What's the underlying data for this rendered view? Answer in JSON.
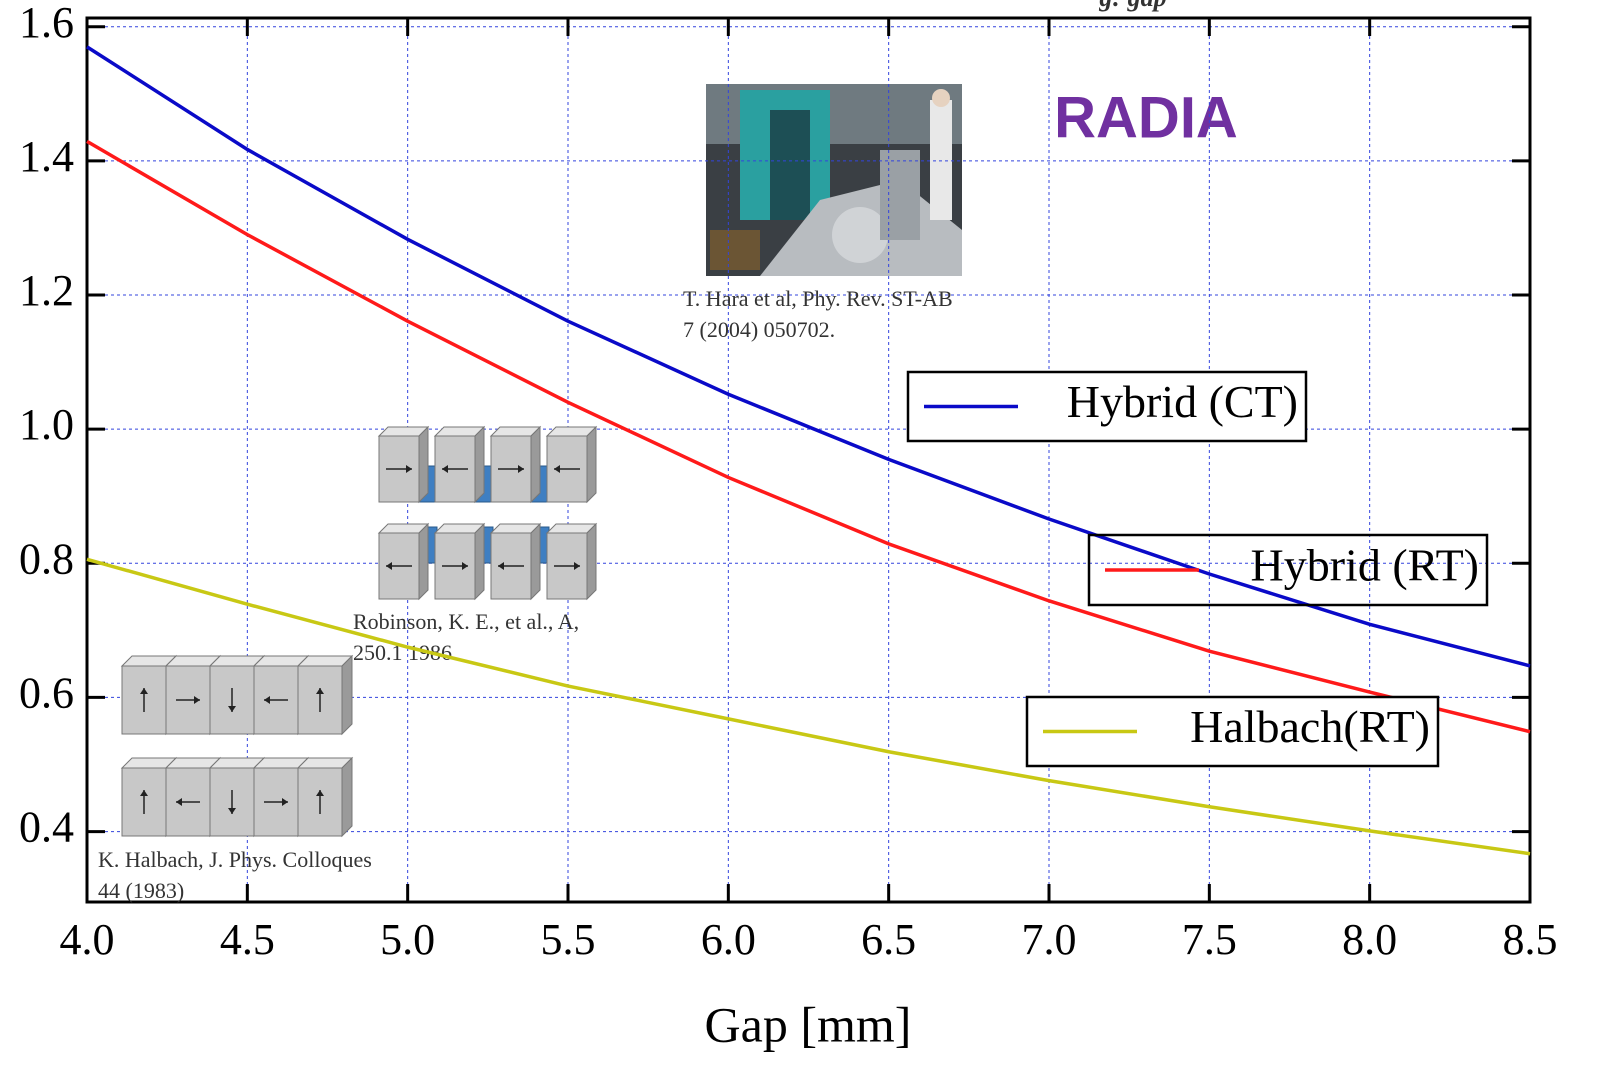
{
  "chart_data": {
    "type": "line",
    "title": "RADIA",
    "subtitle": "g: gap",
    "x_label": "Gap [mm]",
    "x": [
      4.0,
      4.5,
      5.0,
      5.5,
      6.0,
      6.5,
      7.0,
      7.5,
      8.0,
      8.5
    ],
    "series": [
      {
        "name": "Hybrid (CT)",
        "color": "#0a0ac8",
        "values": [
          1.57,
          1.417,
          1.283,
          1.161,
          1.052,
          0.955,
          0.866,
          0.784,
          0.709,
          0.647
        ]
      },
      {
        "name": "Hybrid (RT)",
        "color": "#ff1a1a",
        "values": [
          1.429,
          1.29,
          1.161,
          1.04,
          0.928,
          0.829,
          0.744,
          0.669,
          0.608,
          0.549
        ]
      },
      {
        "name": "Halbach(RT)",
        "color": "#c8c814",
        "values": [
          0.806,
          0.739,
          0.675,
          0.617,
          0.568,
          0.519,
          0.476,
          0.437,
          0.401,
          0.367
        ]
      }
    ],
    "xlim": [
      4.0,
      8.5
    ],
    "ylim": [
      0.295,
      1.613
    ],
    "xticks": [
      {
        "value": 4,
        "label": "4.0"
      },
      4.5,
      {
        "value": 5,
        "label": "5.0"
      },
      5.5,
      {
        "value": 6,
        "label": "6.0"
      },
      6.5,
      {
        "value": 7,
        "label": "7.0"
      },
      7.5,
      {
        "value": 8,
        "label": "8.0"
      },
      8.5
    ],
    "yticks": [
      0.4,
      0.6,
      0.8,
      {
        "value": 1,
        "label": "1.0"
      },
      1.2,
      1.4,
      1.6
    ],
    "grid": true,
    "annotations": [
      "T. Hara et al, Phy. Rev. ST-AB",
      "7 (2004) 050702.",
      "Robinson, K. E., et al., A,",
      "250.1 1986.",
      "K. Halbach, J. Phys. Colloques",
      "44 (1983)"
    ]
  }
}
